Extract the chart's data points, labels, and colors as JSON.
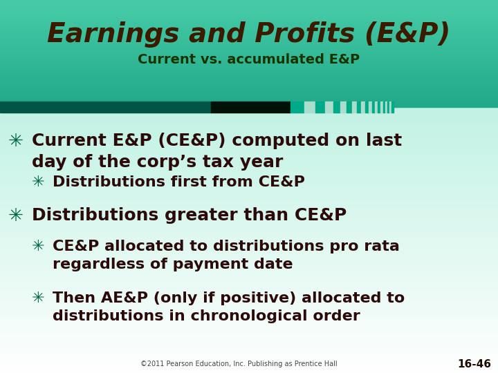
{
  "title_line1": "Earnings and Profits (E&P)",
  "title_line2": "Current vs. accumulated E&P",
  "title_color": "#3B1A00",
  "subtitle_color": "#1A3300",
  "body_text_color": "#2D0A0A",
  "bullet_color": "#006644",
  "footer_text": "©2011 Pearson Education, Inc. Publishing as Prentice Hall",
  "page_number": "16-46",
  "bullet_char": "✳",
  "header_top_color": "#3DBFA0",
  "header_bot_color": "#5DDFC0",
  "body_tl_color": "#A8EDD8",
  "body_br_color": "#FFFFFF",
  "stripe_dark": "#005544",
  "stripe_black": "#001108",
  "stripe_teal": "#00AA88",
  "stripe_light": "#AADDCC",
  "bullets": [
    {
      "level": 0,
      "text": "Current E&P (CE&P) computed on last\nday of the corp’s tax year"
    },
    {
      "level": 1,
      "text": "Distributions first from CE&P"
    },
    {
      "level": 0,
      "text": "Distributions greater than CE&P"
    },
    {
      "level": 1,
      "text": "CE&P allocated to distributions pro rata\nregardless of payment date"
    },
    {
      "level": 1,
      "text": "Then AE&P (only if positive) allocated to\ndistributions in chronological order"
    }
  ]
}
